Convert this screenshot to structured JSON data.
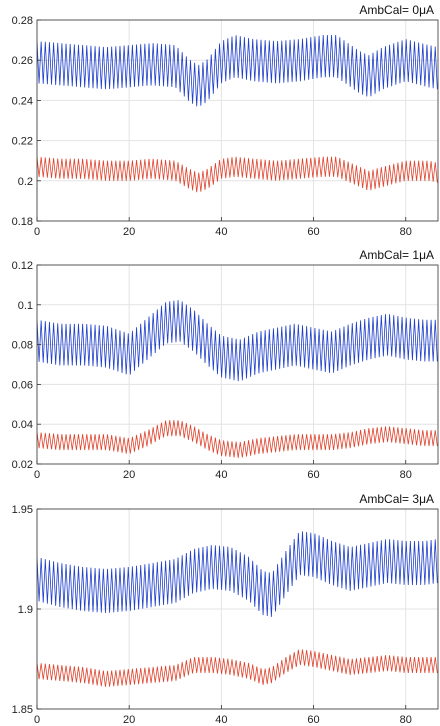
{
  "chart_data": [
    {
      "type": "line",
      "title": "AmbCal= 0μA",
      "xlim": [
        0,
        87
      ],
      "ylim": [
        0.18,
        0.28
      ],
      "xticks": [
        0,
        20,
        40,
        60,
        80
      ],
      "yticks": [
        0.18,
        0.2,
        0.22,
        0.24,
        0.26,
        0.28
      ],
      "ytick_labels": [
        "0.18",
        "0.2",
        "0.22",
        "0.24",
        "0.26",
        "0.28"
      ],
      "grid": true,
      "series": [
        {
          "color": "#1f3fcc",
          "oscillation_amplitude": 0.0105,
          "oscillation_period": 0.9,
          "baseline": {
            "x": [
              0,
              5,
              10,
              15,
              20,
              25,
              30,
              33,
              35,
              37,
              40,
              43,
              47,
              52,
              57,
              62,
              65,
              70,
              72,
              75,
              80,
              85,
              87
            ],
            "y": [
              0.259,
              0.258,
              0.257,
              0.256,
              0.257,
              0.258,
              0.257,
              0.25,
              0.247,
              0.25,
              0.259,
              0.262,
              0.26,
              0.259,
              0.26,
              0.262,
              0.262,
              0.254,
              0.252,
              0.256,
              0.26,
              0.257,
              0.256
            ]
          }
        },
        {
          "color": "#e0442e",
          "oscillation_amplitude": 0.005,
          "oscillation_period": 0.9,
          "baseline": {
            "x": [
              0,
              5,
              10,
              15,
              20,
              25,
              30,
              33,
              35,
              37,
              40,
              43,
              47,
              52,
              57,
              62,
              65,
              70,
              72,
              75,
              80,
              85,
              87
            ],
            "y": [
              0.207,
              0.206,
              0.206,
              0.205,
              0.205,
              0.206,
              0.205,
              0.201,
              0.199,
              0.201,
              0.206,
              0.207,
              0.206,
              0.205,
              0.206,
              0.207,
              0.207,
              0.202,
              0.2,
              0.202,
              0.205,
              0.205,
              0.204
            ]
          }
        }
      ]
    },
    {
      "type": "line",
      "title": "AmbCal= 1μA",
      "xlim": [
        0,
        87
      ],
      "ylim": [
        0.02,
        0.12
      ],
      "xticks": [
        0,
        20,
        40,
        60,
        80
      ],
      "yticks": [
        0.02,
        0.04,
        0.06,
        0.08,
        0.1,
        0.12
      ],
      "ytick_labels": [
        "0.02",
        "0.04",
        "0.06",
        "0.08",
        "0.1",
        "0.12"
      ],
      "grid": true,
      "series": [
        {
          "color": "#1f3fcc",
          "oscillation_amplitude": 0.0105,
          "oscillation_period": 0.9,
          "baseline": {
            "x": [
              0,
              5,
              10,
              15,
              20,
              24,
              28,
              31,
              34,
              37,
              40,
              44,
              48,
              52,
              56,
              60,
              64,
              68,
              72,
              76,
              80,
              84,
              87
            ],
            "y": [
              0.082,
              0.08,
              0.08,
              0.079,
              0.075,
              0.083,
              0.091,
              0.092,
              0.087,
              0.08,
              0.074,
              0.072,
              0.076,
              0.078,
              0.08,
              0.078,
              0.076,
              0.08,
              0.083,
              0.085,
              0.083,
              0.082,
              0.082
            ]
          }
        },
        {
          "color": "#e0442e",
          "oscillation_amplitude": 0.004,
          "oscillation_period": 0.9,
          "baseline": {
            "x": [
              0,
              5,
              10,
              15,
              20,
              24,
              28,
              31,
              34,
              37,
              40,
              44,
              48,
              52,
              56,
              60,
              64,
              68,
              72,
              76,
              80,
              84,
              87
            ],
            "y": [
              0.032,
              0.031,
              0.031,
              0.031,
              0.029,
              0.033,
              0.038,
              0.038,
              0.035,
              0.031,
              0.028,
              0.027,
              0.029,
              0.03,
              0.031,
              0.031,
              0.031,
              0.032,
              0.034,
              0.035,
              0.034,
              0.033,
              0.033
            ]
          }
        }
      ]
    },
    {
      "type": "line",
      "title": "AmbCal= 3μA",
      "xlim": [
        0,
        87
      ],
      "ylim": [
        1.85,
        1.95
      ],
      "xticks": [
        0,
        20,
        40,
        60,
        80
      ],
      "yticks": [
        1.85,
        1.9,
        1.95
      ],
      "ytick_labels": [
        "1.85",
        "1.9",
        "1.95"
      ],
      "grid": true,
      "series": [
        {
          "color": "#1f3fcc",
          "oscillation_amplitude": 0.011,
          "oscillation_period": 0.9,
          "baseline": {
            "x": [
              0,
              5,
              10,
              15,
              20,
              25,
              30,
              34,
              38,
              42,
              46,
              49,
              51,
              54,
              57,
              60,
              64,
              68,
              72,
              76,
              80,
              84,
              87
            ],
            "y": [
              1.915,
              1.912,
              1.91,
              1.909,
              1.91,
              1.912,
              1.914,
              1.919,
              1.921,
              1.92,
              1.915,
              1.908,
              1.907,
              1.918,
              1.928,
              1.927,
              1.923,
              1.92,
              1.922,
              1.924,
              1.923,
              1.923,
              1.924
            ]
          }
        },
        {
          "color": "#e0442e",
          "oscillation_amplitude": 0.004,
          "oscillation_period": 0.9,
          "baseline": {
            "x": [
              0,
              5,
              10,
              15,
              20,
              25,
              30,
              34,
              38,
              42,
              46,
              49,
              51,
              54,
              57,
              60,
              64,
              68,
              72,
              76,
              80,
              84,
              87
            ],
            "y": [
              1.869,
              1.868,
              1.867,
              1.865,
              1.866,
              1.867,
              1.868,
              1.872,
              1.872,
              1.871,
              1.869,
              1.866,
              1.867,
              1.872,
              1.876,
              1.875,
              1.873,
              1.871,
              1.872,
              1.873,
              1.872,
              1.872,
              1.872
            ]
          }
        }
      ]
    }
  ]
}
